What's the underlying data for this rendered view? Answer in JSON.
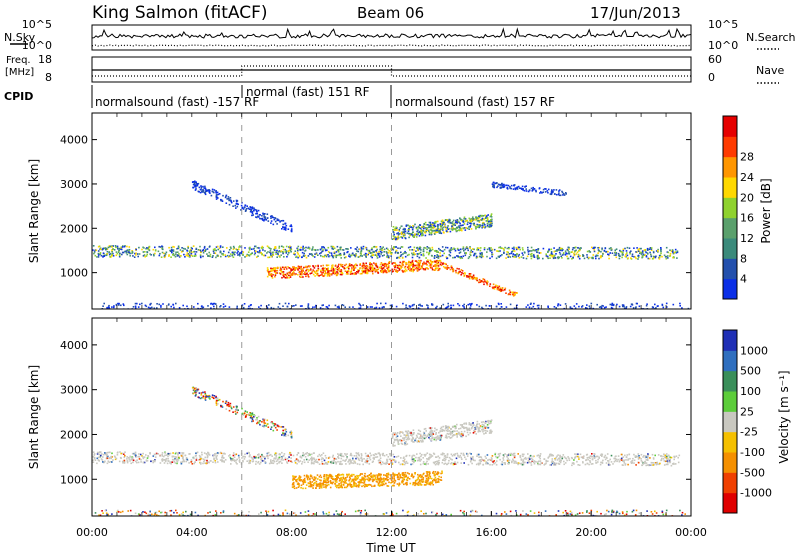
{
  "header": {
    "site": "King Salmon (fitACF)",
    "beam": "Beam 06",
    "date": "17/Jun/2013"
  },
  "chart_data": [
    {
      "type": "line",
      "panel": "noise",
      "left_label": "N.Sky",
      "right_label": "N.Search",
      "left_ticks": [
        "10^5",
        "10^0"
      ],
      "right_ticks": [
        "10^5",
        "10^0"
      ]
    },
    {
      "type": "line",
      "panel": "frequency",
      "left_label_line1": "Freq.",
      "left_label_line2": "[MHz]",
      "right_label": "Nave",
      "left_ticks": [
        "18",
        "8"
      ],
      "right_ticks": [
        "60",
        "0"
      ]
    },
    {
      "type": "table",
      "panel": "cpid",
      "label": "CPID",
      "segments": [
        {
          "text": "normalsound (fast) -157 RF",
          "start_hour": 0,
          "end_hour": 6
        },
        {
          "text": "normal (fast) 151 RF",
          "start_hour": 6,
          "end_hour": 12
        },
        {
          "text": "normalsound (fast) 157 RF",
          "start_hour": 12,
          "end_hour": 24
        }
      ]
    },
    {
      "type": "heatmap",
      "panel": "power",
      "ylabel": "Slant Range [km]",
      "yticks": [
        "1000",
        "2000",
        "3000",
        "4000"
      ],
      "ylim": [
        180,
        4600
      ],
      "x_range_hours": [
        0,
        24
      ],
      "colorbar": {
        "label": "Power [dB]",
        "ticks": [
          "4",
          "8",
          "12",
          "16",
          "20",
          "24",
          "28"
        ],
        "colors": [
          "#0b2fe6",
          "#2350ad",
          "#3b8a7b",
          "#5aa06c",
          "#8fd22e",
          "#ffd800",
          "#ff9600",
          "#ff3b00",
          "#e60000"
        ]
      }
    },
    {
      "type": "heatmap",
      "panel": "velocity",
      "ylabel": "Slant Range [km]",
      "yticks": [
        "1000",
        "2000",
        "3000",
        "4000"
      ],
      "ylim": [
        180,
        4600
      ],
      "x_range_hours": [
        0,
        24
      ],
      "colorbar": {
        "label": "Velocity [m s⁻¹]",
        "ticks": [
          "1000",
          "500",
          "100",
          "25",
          "-25",
          "-100",
          "-500",
          "-1000"
        ],
        "colors": [
          "#1f2fb5",
          "#2f6fbf",
          "#3a8f5a",
          "#5ccd3a",
          "#c9c8c0",
          "#f5c000",
          "#f59000",
          "#f04000",
          "#e00000"
        ]
      }
    }
  ],
  "xaxis": {
    "label": "Time UT",
    "ticks": [
      "00:00",
      "04:00",
      "08:00",
      "12:00",
      "16:00",
      "20:00",
      "00:00"
    ]
  }
}
